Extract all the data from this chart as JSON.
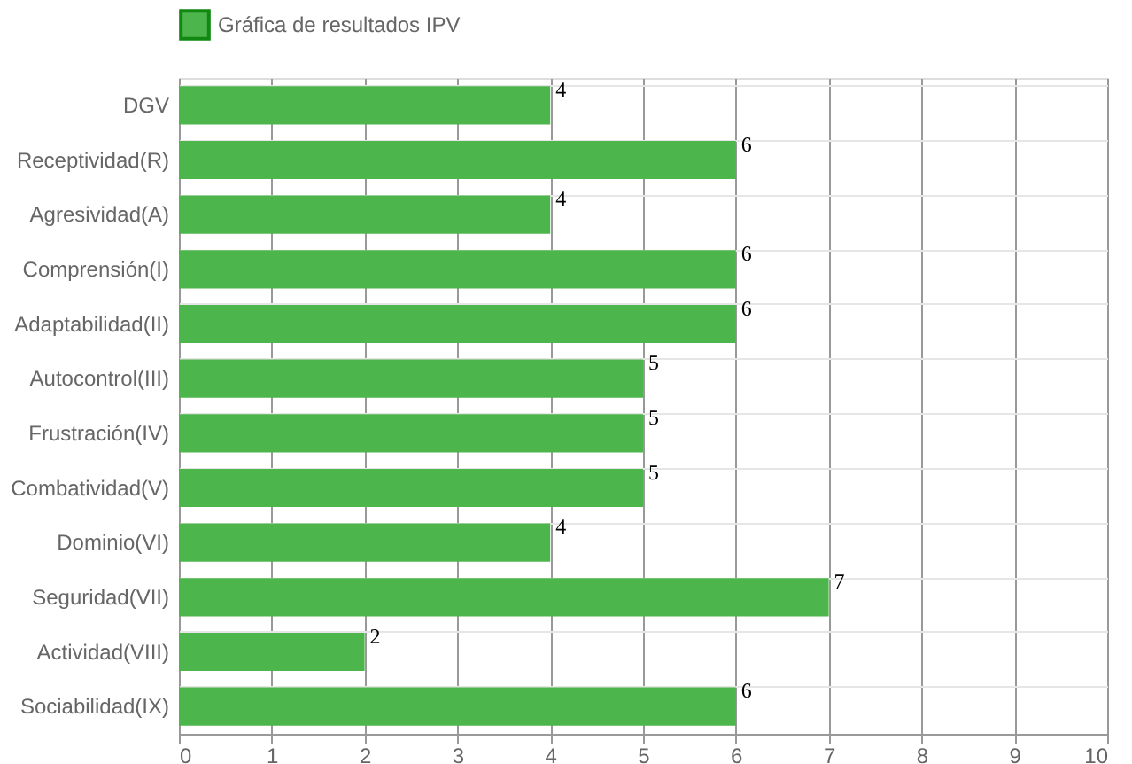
{
  "chart_data": {
    "type": "bar",
    "orientation": "horizontal",
    "categories": [
      "DGV",
      "Receptividad(R)",
      "Agresividad(A)",
      "Comprensión(I)",
      "Adaptabilidad(II)",
      "Autocontrol(III)",
      "Frustración(IV)",
      "Combatividad(V)",
      "Dominio(VI)",
      "Seguridad(VII)",
      "Actividad(VIII)",
      "Sociabilidad(IX)"
    ],
    "series": [
      {
        "name": "Gráfica de resultados IPV",
        "color": "#4cb54c",
        "values": [
          4,
          6,
          4,
          6,
          6,
          5,
          5,
          5,
          4,
          7,
          2,
          6
        ]
      }
    ],
    "xlim": [
      0,
      10
    ],
    "xticks": [
      0,
      1,
      2,
      3,
      4,
      5,
      6,
      7,
      8,
      9,
      10
    ],
    "grid": true,
    "legend": "top",
    "data_labels": true
  }
}
